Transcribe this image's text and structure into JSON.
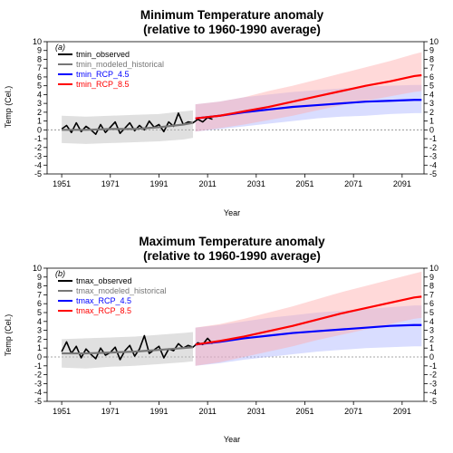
{
  "chart_data": [
    {
      "type": "line",
      "panel_label": "(a)",
      "title_lines": [
        "Minimum Temperature anomaly",
        "(relative to 1960-1990 average)"
      ],
      "xlabel": "Year",
      "ylabel": "Temp (Cel.)",
      "xlim": [
        1945,
        2100
      ],
      "ylim": [
        -5,
        10
      ],
      "xticks": [
        1951,
        1971,
        1991,
        2011,
        2031,
        2051,
        2071,
        2091
      ],
      "yticks": [
        -5,
        -4,
        -3,
        -2,
        -1,
        0,
        1,
        2,
        3,
        4,
        5,
        6,
        7,
        8,
        9,
        10
      ],
      "reference_line": 0,
      "legend": [
        {
          "label": "tmin_observed",
          "color": "#000000"
        },
        {
          "label": "tmin_modeled_historical",
          "color": "#777777"
        },
        {
          "label": "tmin_RCP_4.5",
          "color": "#0000ff"
        },
        {
          "label": "tmin_RCP_8.5",
          "color": "#ff0000"
        }
      ],
      "series": [
        {
          "name": "tmin_observed",
          "color": "#000000",
          "x": [
            1951,
            1953,
            1955,
            1957,
            1959,
            1961,
            1963,
            1965,
            1967,
            1969,
            1971,
            1973,
            1975,
            1977,
            1979,
            1981,
            1983,
            1985,
            1987,
            1989,
            1991,
            1993,
            1995,
            1997,
            1999,
            2001,
            2003,
            2005,
            2007,
            2009,
            2011,
            2013
          ],
          "y": [
            0.1,
            0.5,
            -0.3,
            0.8,
            -0.2,
            0.4,
            0.0,
            -0.5,
            0.6,
            -0.3,
            0.3,
            0.9,
            -0.4,
            0.2,
            0.8,
            -0.1,
            0.5,
            0.0,
            1.0,
            0.3,
            0.6,
            -0.2,
            0.9,
            0.4,
            1.9,
            0.6,
            0.9,
            0.8,
            1.2,
            0.9,
            1.4,
            1.2
          ]
        },
        {
          "name": "tmin_modeled_historical",
          "color": "#777777",
          "band_color": "#bbbbbb",
          "x": [
            1951,
            1961,
            1971,
            1981,
            1991,
            2001,
            2005
          ],
          "y": [
            0.0,
            0.0,
            0.1,
            0.1,
            0.3,
            0.6,
            0.8
          ],
          "band_low": [
            -1.5,
            -1.6,
            -1.5,
            -1.4,
            -1.3,
            -1.1,
            -0.9
          ],
          "band_high": [
            1.6,
            1.5,
            1.6,
            1.7,
            1.8,
            2.1,
            2.2
          ]
        },
        {
          "name": "tmin_RCP_4.5",
          "color": "#0000ff",
          "band_color": "#aab4ff",
          "x": [
            2006,
            2016,
            2026,
            2036,
            2046,
            2056,
            2066,
            2076,
            2086,
            2096,
            2099
          ],
          "y": [
            1.3,
            1.6,
            2.0,
            2.3,
            2.6,
            2.8,
            3.0,
            3.2,
            3.3,
            3.4,
            3.4
          ],
          "band_low": [
            -0.2,
            0.1,
            0.4,
            0.7,
            1.0,
            1.3,
            1.5,
            1.6,
            1.8,
            1.9,
            1.9
          ],
          "band_high": [
            2.9,
            3.2,
            3.7,
            4.0,
            4.3,
            4.5,
            4.7,
            4.9,
            5.0,
            5.1,
            5.1
          ]
        },
        {
          "name": "tmin_RCP_8.5",
          "color": "#ff0000",
          "band_color": "#ffaaaa",
          "x": [
            2006,
            2016,
            2026,
            2036,
            2046,
            2056,
            2066,
            2076,
            2086,
            2096,
            2099
          ],
          "y": [
            1.3,
            1.6,
            2.1,
            2.6,
            3.2,
            3.8,
            4.4,
            5.0,
            5.5,
            6.1,
            6.2
          ],
          "band_low": [
            -0.2,
            0.2,
            0.6,
            1.1,
            1.6,
            2.2,
            2.8,
            3.3,
            3.8,
            4.3,
            4.4
          ],
          "band_high": [
            2.9,
            3.2,
            3.7,
            4.4,
            5.0,
            5.7,
            6.4,
            7.1,
            7.8,
            8.6,
            8.8
          ]
        }
      ]
    },
    {
      "type": "line",
      "panel_label": "(b)",
      "title_lines": [
        "Maximum Temperature anomaly",
        "(relative to 1960-1990 average)"
      ],
      "xlabel": "Year",
      "ylabel": "Temp (Cel.)",
      "xlim": [
        1945,
        2100
      ],
      "ylim": [
        -5,
        10
      ],
      "xticks": [
        1951,
        1971,
        1991,
        2011,
        2031,
        2051,
        2071,
        2091
      ],
      "yticks": [
        -5,
        -4,
        -3,
        -2,
        -1,
        0,
        1,
        2,
        3,
        4,
        5,
        6,
        7,
        8,
        9,
        10
      ],
      "reference_line": 0,
      "legend": [
        {
          "label": "tmax_observed",
          "color": "#000000"
        },
        {
          "label": "tmax_modeled_historical",
          "color": "#777777"
        },
        {
          "label": "tmax_RCP_4.5",
          "color": "#0000ff"
        },
        {
          "label": "tmax_RCP_8.5",
          "color": "#ff0000"
        }
      ],
      "series": [
        {
          "name": "tmax_observed",
          "color": "#000000",
          "x": [
            1951,
            1953,
            1955,
            1957,
            1959,
            1961,
            1963,
            1965,
            1967,
            1969,
            1971,
            1973,
            1975,
            1977,
            1979,
            1981,
            1983,
            1985,
            1987,
            1989,
            1991,
            1993,
            1995,
            1997,
            1999,
            2001,
            2003,
            2005,
            2007,
            2009,
            2011,
            2013
          ],
          "y": [
            0.6,
            1.7,
            0.4,
            1.2,
            -0.1,
            0.9,
            0.3,
            -0.2,
            1.0,
            0.2,
            0.5,
            1.1,
            -0.3,
            0.7,
            1.3,
            0.1,
            0.9,
            2.4,
            0.4,
            0.8,
            1.2,
            -0.1,
            0.9,
            0.7,
            1.5,
            1.0,
            1.3,
            1.1,
            1.6,
            1.4,
            2.1,
            1.5
          ]
        },
        {
          "name": "tmax_modeled_historical",
          "color": "#777777",
          "band_color": "#bbbbbb",
          "x": [
            1951,
            1961,
            1971,
            1981,
            1991,
            2001,
            2005
          ],
          "y": [
            0.4,
            0.4,
            0.5,
            0.6,
            0.8,
            1.0,
            1.1
          ],
          "band_low": [
            -1.2,
            -1.3,
            -1.1,
            -1.0,
            -0.8,
            -0.6,
            -0.5
          ],
          "band_high": [
            2.0,
            2.1,
            2.2,
            2.3,
            2.5,
            2.7,
            2.8
          ]
        },
        {
          "name": "tmax_RCP_4.5",
          "color": "#0000ff",
          "band_color": "#aab4ff",
          "x": [
            2006,
            2016,
            2026,
            2036,
            2046,
            2056,
            2066,
            2076,
            2086,
            2096,
            2099
          ],
          "y": [
            1.4,
            1.7,
            2.1,
            2.4,
            2.7,
            2.9,
            3.1,
            3.3,
            3.5,
            3.6,
            3.6
          ],
          "band_low": [
            -1.0,
            -0.7,
            -0.3,
            0.0,
            0.3,
            0.6,
            0.8,
            1.0,
            1.1,
            1.2,
            1.2
          ],
          "band_high": [
            3.3,
            3.6,
            4.0,
            4.4,
            4.7,
            5.0,
            5.2,
            5.4,
            5.6,
            5.8,
            5.8
          ]
        },
        {
          "name": "tmax_RCP_8.5",
          "color": "#ff0000",
          "band_color": "#ffaaaa",
          "x": [
            2006,
            2016,
            2026,
            2036,
            2046,
            2056,
            2066,
            2076,
            2086,
            2096,
            2099
          ],
          "y": [
            1.4,
            1.8,
            2.3,
            2.9,
            3.5,
            4.2,
            4.9,
            5.5,
            6.1,
            6.7,
            6.8
          ],
          "band_low": [
            -1.0,
            -0.6,
            0.0,
            0.6,
            1.2,
            1.9,
            2.5,
            3.1,
            3.7,
            4.3,
            4.4
          ],
          "band_high": [
            3.3,
            3.7,
            4.3,
            5.0,
            5.7,
            6.5,
            7.3,
            8.0,
            8.7,
            9.4,
            9.6
          ]
        }
      ]
    }
  ]
}
